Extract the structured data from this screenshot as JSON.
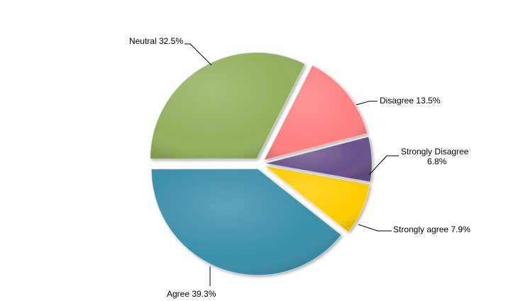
{
  "chart_data": {
    "type": "pie",
    "labels": [
      "Strongly agree",
      "Agree",
      "Neutral",
      "Disagree",
      "Strongly Disagree"
    ],
    "values": [
      7.9,
      39.3,
      32.5,
      13.5,
      6.8
    ],
    "value_labels": [
      "7.9%",
      "39.3%",
      "32.5%",
      "13.5%",
      "6.8%"
    ],
    "colors": [
      "#ffcc00",
      "#3a8fa9",
      "#93b05d",
      "#ff8080",
      "#6a5289"
    ],
    "exploded": true,
    "style": "3d-beveled",
    "legend": "none",
    "data_labels": "outside-with-leader-lines"
  }
}
